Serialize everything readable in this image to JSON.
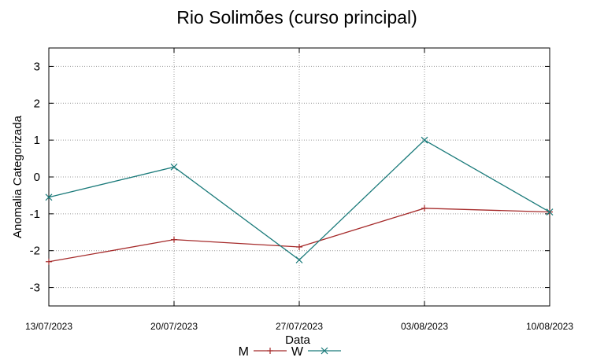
{
  "chart_data": {
    "type": "line",
    "title": "Rio Solimões (curso principal)",
    "xlabel": "Data",
    "ylabel": "Anomalia Categorizada",
    "categories": [
      "13/07/2023",
      "20/07/2023",
      "27/07/2023",
      "03/08/2023",
      "10/08/2023"
    ],
    "ylim": [
      -3.5,
      3.5
    ],
    "yticks": [
      3,
      2,
      1,
      0,
      -1,
      -2,
      -3
    ],
    "grid": true,
    "legend_position": "bottom",
    "series": [
      {
        "name": "M",
        "color": "#a52a2a",
        "marker": "plus",
        "values": [
          -2.3,
          -1.7,
          -1.9,
          -0.85,
          -0.95
        ]
      },
      {
        "name": "W",
        "color": "#1a7a7a",
        "marker": "cross",
        "values": [
          -0.55,
          0.27,
          -2.25,
          1.0,
          -0.95
        ]
      }
    ]
  }
}
